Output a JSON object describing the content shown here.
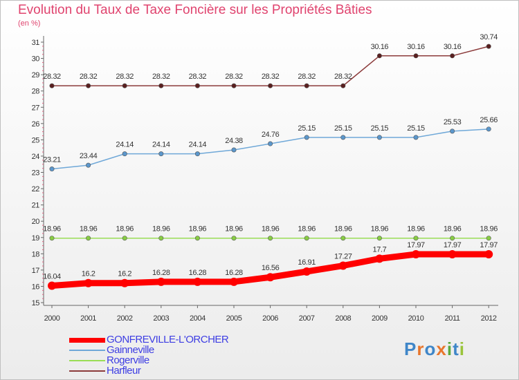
{
  "title": "Evolution du Taux de Taxe Foncière sur les Propriétés Bâties",
  "unit": "(en %)",
  "brand": {
    "letters": [
      "P",
      "r",
      "o",
      "x",
      "i",
      "t",
      "i"
    ],
    "colors": [
      "#3f86c8",
      "#e8762c",
      "#3f86c8",
      "#e8762c",
      "#5aaa3c",
      "#3f86c8",
      "#9ac43a"
    ]
  },
  "chart_data": {
    "type": "line",
    "categories": [
      "2000",
      "2001",
      "2002",
      "2003",
      "2004",
      "2005",
      "2006",
      "2007",
      "2008",
      "2009",
      "2010",
      "2011",
      "2012"
    ],
    "ylim": [
      15,
      31
    ],
    "yticks": [
      "15",
      "16",
      "17",
      "18",
      "19",
      "20",
      "21",
      "22",
      "23",
      "24",
      "25",
      "26",
      "27",
      "28",
      "29",
      "30",
      "31"
    ],
    "grid": false,
    "series": [
      {
        "name": "GONFREVILLE-L'ORCHER",
        "color": "#ff0000",
        "weight": "thick",
        "values": [
          16.04,
          16.2,
          16.2,
          16.28,
          16.28,
          16.28,
          16.56,
          16.91,
          17.27,
          17.7,
          17.97,
          17.97,
          17.97
        ],
        "labels": [
          "16.04",
          "16.2",
          "16.2",
          "16.28",
          "16.28",
          "16.28",
          "16.56",
          "16.91",
          "17.27",
          "17.7",
          "17.97",
          "17.97",
          "17.97"
        ]
      },
      {
        "name": "Gainneville",
        "color": "#6fa8d8",
        "weight": "thin",
        "values": [
          23.21,
          23.44,
          24.14,
          24.14,
          24.14,
          24.38,
          24.76,
          25.15,
          25.15,
          25.15,
          25.15,
          25.53,
          25.66
        ],
        "labels": [
          "23.21",
          "23.44",
          "24.14",
          "24.14",
          "24.14",
          "24.38",
          "24.76",
          "25.15",
          "25.15",
          "25.15",
          "25.15",
          "25.53",
          "25.66"
        ]
      },
      {
        "name": "Rogerville",
        "color": "#99dd55",
        "weight": "thin",
        "values": [
          18.96,
          18.96,
          18.96,
          18.96,
          18.96,
          18.96,
          18.96,
          18.96,
          18.96,
          18.96,
          18.96,
          18.96,
          18.96
        ],
        "labels": [
          "18.96",
          "18.96",
          "18.96",
          "18.96",
          "18.96",
          "18.96",
          "18.96",
          "18.96",
          "18.96",
          "18.96",
          "18.96",
          "18.96",
          "18.96"
        ]
      },
      {
        "name": "Harfleur",
        "color": "#8b3a3a",
        "weight": "thin",
        "values": [
          28.32,
          28.32,
          28.32,
          28.32,
          28.32,
          28.32,
          28.32,
          28.32,
          28.32,
          30.16,
          30.16,
          30.16,
          30.74
        ],
        "labels": [
          "28.32",
          "28.32",
          "28.32",
          "28.32",
          "28.32",
          "28.32",
          "28.32",
          "28.32",
          "28.32",
          "30.16",
          "30.16",
          "30.16",
          "30.74"
        ]
      }
    ]
  }
}
